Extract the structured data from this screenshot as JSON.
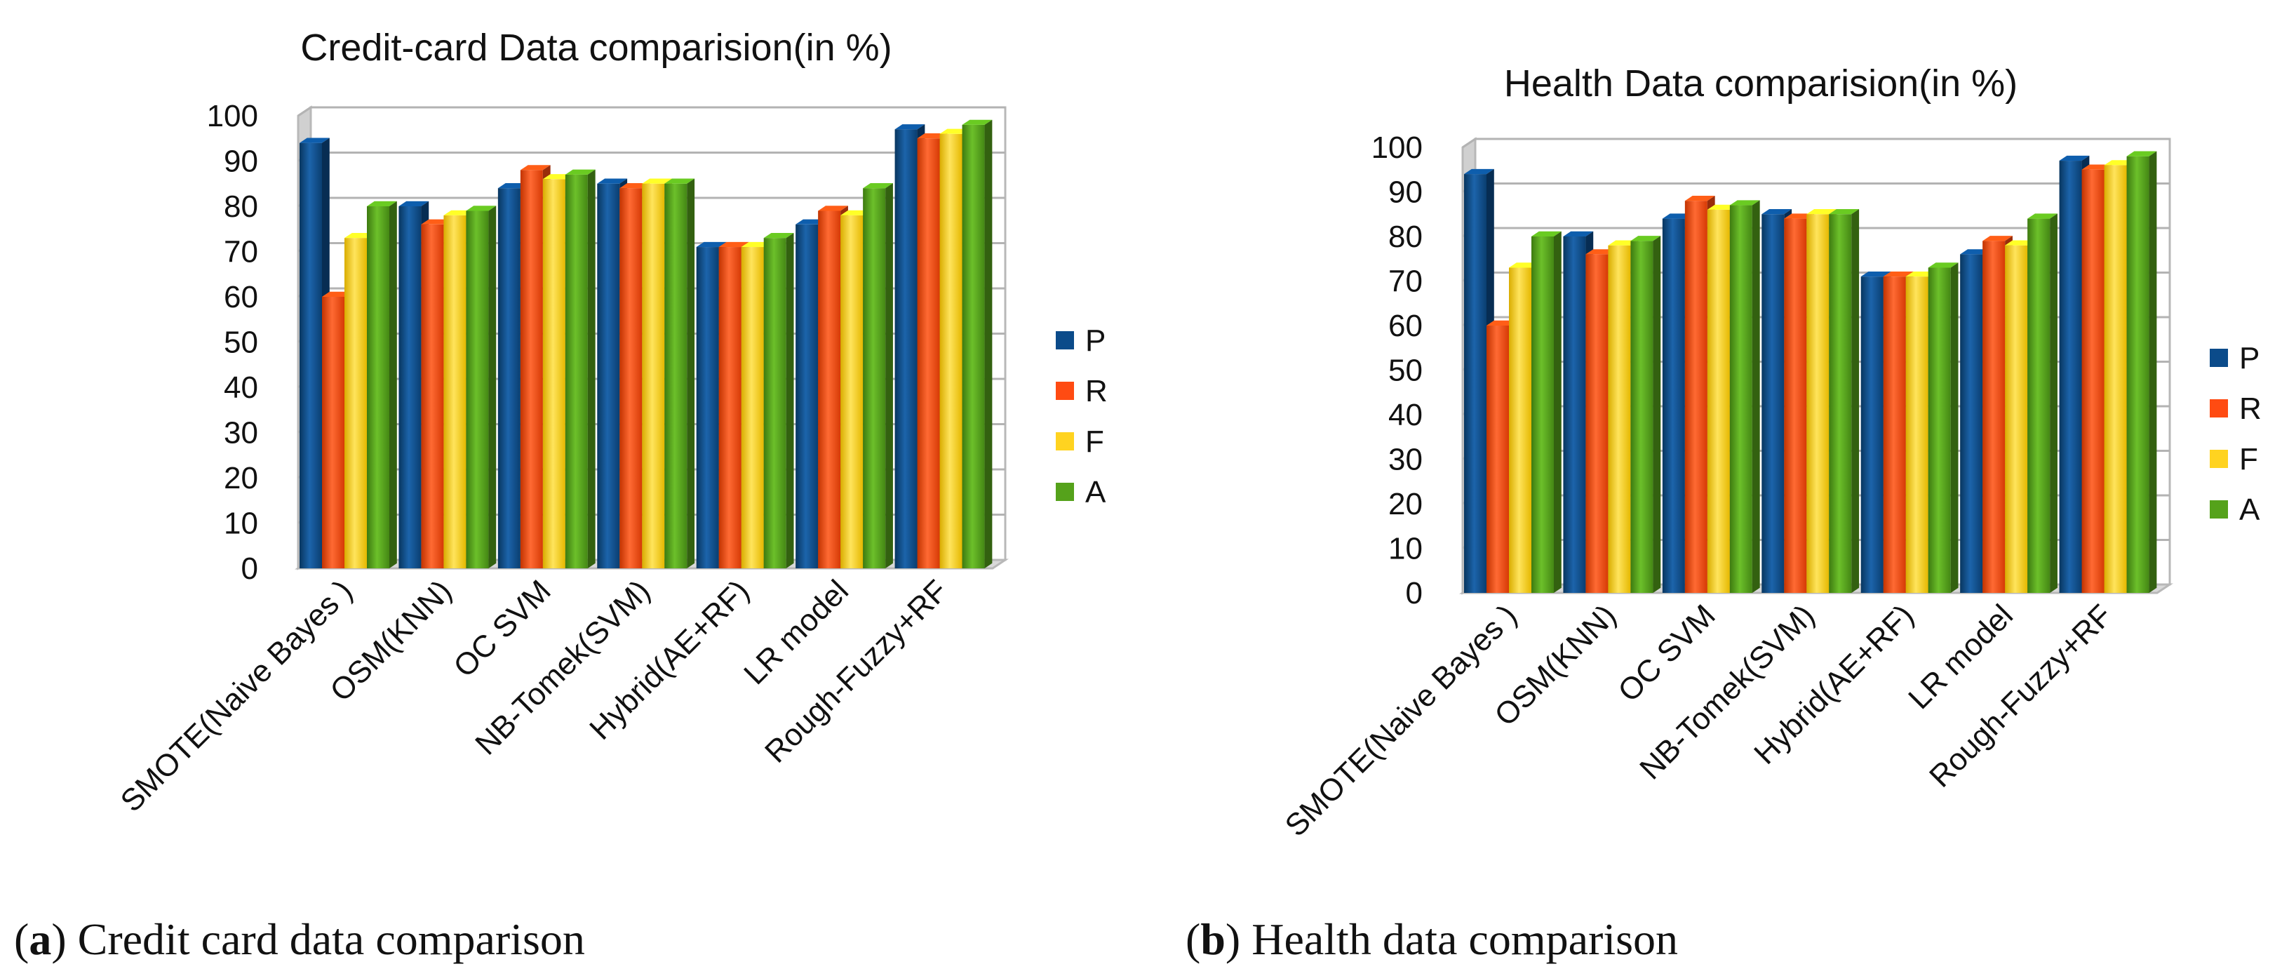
{
  "colors": {
    "P": "#0b4b8a",
    "R": "#ff4b12",
    "F": "#ffd320",
    "A": "#55a21b"
  },
  "chart_data": [
    {
      "type": "bar",
      "title": "Credit-card Data comparision(in %)",
      "caption_letter": "a",
      "caption_text": "Credit card data comparison",
      "categories": [
        "SMOTE(Naive Bayes )",
        "OSM(KNN)",
        "OC SVM",
        "NB-Tomek(SVM)",
        "Hybrid(AE+RF)",
        "LR model",
        "Rough-Fuzzy+RF"
      ],
      "series": [
        {
          "name": "P",
          "values": [
            94,
            80,
            84,
            85,
            71,
            76,
            97
          ]
        },
        {
          "name": "R",
          "values": [
            60,
            76,
            88,
            84,
            71,
            79,
            95
          ]
        },
        {
          "name": "F",
          "values": [
            73,
            78,
            86,
            85,
            71,
            78,
            96
          ]
        },
        {
          "name": "A",
          "values": [
            80,
            79,
            87,
            85,
            73,
            84,
            98
          ]
        }
      ],
      "yticks": [
        "0",
        "10",
        "20",
        "30",
        "40",
        "50",
        "60",
        "70",
        "80",
        "90",
        "100"
      ],
      "ylim": [
        0,
        100
      ],
      "xlabel": "",
      "ylabel": "",
      "grid": true,
      "legend": "right"
    },
    {
      "type": "bar",
      "title": "Health Data comparision(in %)",
      "caption_letter": "b",
      "caption_text": "Health data comparison",
      "categories": [
        "SMOTE(Naive Bayes )",
        "OSM(KNN)",
        "OC SVM",
        "NB-Tomek(SVM)",
        "Hybrid(AE+RF)",
        "LR model",
        "Rough-Fuzzy+RF"
      ],
      "series": [
        {
          "name": "P",
          "values": [
            94,
            80,
            84,
            85,
            71,
            76,
            97
          ]
        },
        {
          "name": "R",
          "values": [
            60,
            76,
            88,
            84,
            71,
            79,
            95
          ]
        },
        {
          "name": "F",
          "values": [
            73,
            78,
            86,
            85,
            71,
            78,
            96
          ]
        },
        {
          "name": "A",
          "values": [
            80,
            79,
            87,
            85,
            73,
            84,
            98
          ]
        }
      ],
      "yticks": [
        "0",
        "10",
        "20",
        "30",
        "40",
        "50",
        "60",
        "70",
        "80",
        "90",
        "100"
      ],
      "ylim": [
        0,
        100
      ],
      "xlabel": "",
      "ylabel": "",
      "grid": true,
      "legend": "right"
    }
  ]
}
